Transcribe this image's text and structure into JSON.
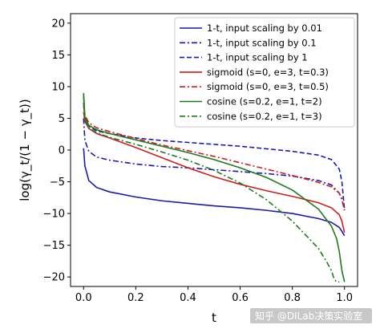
{
  "chart_data": {
    "type": "line",
    "xlabel": "t",
    "ylabel": "log(γ_t/(1 − γ_t))",
    "xlim": [
      -0.05,
      1.05
    ],
    "ylim": [
      -21.5,
      21.5
    ],
    "xticks": [
      "0.0",
      "0.2",
      "0.4",
      "0.6",
      "0.8",
      "1.0"
    ],
    "yticks": [
      "20",
      "15",
      "10",
      "5",
      "0",
      "−5",
      "−10",
      "−15",
      "−20"
    ],
    "grid": false,
    "legend_position": "top-right",
    "series": [
      {
        "name": "1-t, input scaling by 0.01",
        "color": "#1a1aa8",
        "style": "solid",
        "x": [
          0.0,
          0.005,
          0.02,
          0.05,
          0.1,
          0.2,
          0.3,
          0.4,
          0.5,
          0.6,
          0.7,
          0.8,
          0.9,
          0.95,
          0.98,
          0.99,
          1.0
        ],
        "y": [
          0.3,
          -2.5,
          -4.8,
          -5.9,
          -6.6,
          -7.4,
          -8.0,
          -8.4,
          -8.8,
          -9.1,
          -9.5,
          -10.0,
          -10.8,
          -11.4,
          -12.2,
          -12.8,
          -13.5
        ]
      },
      {
        "name": "1-t, input scaling by 0.1",
        "color": "#1a1aa8",
        "style": "dashdot",
        "x": [
          0.0,
          0.005,
          0.02,
          0.05,
          0.1,
          0.2,
          0.3,
          0.4,
          0.5,
          0.6,
          0.7,
          0.8,
          0.9,
          0.95,
          0.98,
          0.99,
          1.0
        ],
        "y": [
          5.0,
          1.5,
          -0.2,
          -1.1,
          -1.6,
          -2.2,
          -2.6,
          -2.8,
          -3.1,
          -3.4,
          -3.7,
          -4.1,
          -4.8,
          -5.5,
          -6.8,
          -7.8,
          -9.5
        ]
      },
      {
        "name": "1-t, input scaling by 1",
        "color": "#1a1aa8",
        "style": "dashed",
        "x": [
          0.0,
          0.005,
          0.02,
          0.05,
          0.1,
          0.2,
          0.3,
          0.4,
          0.5,
          0.6,
          0.7,
          0.8,
          0.9,
          0.95,
          0.98,
          0.99,
          1.0
        ],
        "y": [
          7.5,
          5.0,
          3.8,
          3.0,
          2.6,
          1.9,
          1.5,
          1.2,
          0.9,
          0.6,
          0.2,
          -0.2,
          -0.8,
          -1.5,
          -3.0,
          -5.0,
          -9.5
        ]
      },
      {
        "name": "sigmoid (s=0, e=3, t=0.3)",
        "color": "#cc1f1f",
        "style": "solid",
        "x": [
          0.0,
          0.005,
          0.02,
          0.05,
          0.1,
          0.2,
          0.3,
          0.4,
          0.5,
          0.6,
          0.7,
          0.8,
          0.9,
          0.95,
          0.98,
          0.99,
          1.0
        ],
        "y": [
          6.0,
          4.5,
          3.4,
          2.6,
          1.9,
          0.4,
          -1.2,
          -2.8,
          -4.2,
          -5.4,
          -6.4,
          -7.3,
          -8.3,
          -9.1,
          -10.2,
          -11.2,
          -13.0
        ]
      },
      {
        "name": "sigmoid (s=0, e=3, t=0.5)",
        "color": "#cc1f1f",
        "style": "dashdot",
        "x": [
          0.0,
          0.005,
          0.02,
          0.05,
          0.1,
          0.2,
          0.3,
          0.4,
          0.5,
          0.6,
          0.7,
          0.8,
          0.9,
          0.95,
          0.98,
          0.99,
          1.0
        ],
        "y": [
          7.0,
          5.5,
          4.3,
          3.5,
          2.9,
          1.8,
          0.8,
          -0.1,
          -1.0,
          -2.0,
          -3.0,
          -4.0,
          -5.1,
          -5.8,
          -6.8,
          -7.6,
          -9.5
        ]
      },
      {
        "name": "cosine (s=0.2, e=1, t=2)",
        "color": "#1f7a1f",
        "style": "solid",
        "x": [
          0.0,
          0.005,
          0.02,
          0.05,
          0.1,
          0.2,
          0.3,
          0.4,
          0.5,
          0.6,
          0.7,
          0.8,
          0.9,
          0.95,
          0.97,
          0.98,
          0.99,
          1.0
        ],
        "y": [
          9.0,
          5.2,
          3.9,
          3.2,
          2.6,
          1.6,
          0.6,
          -0.4,
          -1.5,
          -2.8,
          -4.3,
          -6.3,
          -9.3,
          -12.0,
          -14.0,
          -16.0,
          -19.0,
          -20.8
        ]
      },
      {
        "name": "cosine (s=0.2, e=1, t=3)",
        "color": "#1f7a1f",
        "style": "dashdot",
        "x": [
          0.0,
          0.005,
          0.02,
          0.05,
          0.1,
          0.2,
          0.3,
          0.4,
          0.5,
          0.6,
          0.7,
          0.8,
          0.9,
          0.93,
          0.95,
          0.96,
          0.97,
          0.98
        ],
        "y": [
          8.5,
          4.8,
          3.5,
          2.7,
          2.0,
          0.9,
          -0.3,
          -1.6,
          -3.2,
          -5.2,
          -7.8,
          -11.2,
          -15.5,
          -17.5,
          -19.0,
          -20.3,
          -20.8,
          -20.8
        ]
      }
    ],
    "watermark": "知乎 @DILab决策实验室"
  }
}
